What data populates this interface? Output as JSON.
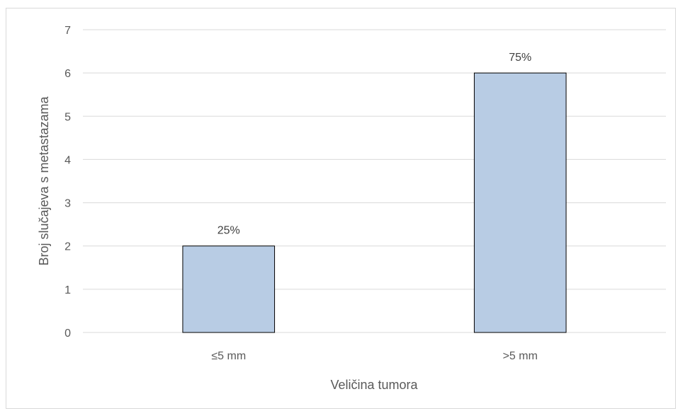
{
  "chart_data": {
    "type": "bar",
    "categories": [
      "≤5 mm",
      ">5 mm"
    ],
    "values": [
      2,
      6
    ],
    "data_labels": [
      "25%",
      "75%"
    ],
    "xlabel": "Veličina tumora",
    "ylabel": "Broj slučajeva s metastazama",
    "ylim": [
      0,
      7
    ],
    "yticks": [
      "0",
      "1",
      "2",
      "3",
      "4",
      "5",
      "6",
      "7"
    ],
    "grid": true,
    "legend": "none",
    "bar_color": "#b8cce4",
    "bar_edge_color": "#000000",
    "grid_color": "#d9d9d9"
  }
}
